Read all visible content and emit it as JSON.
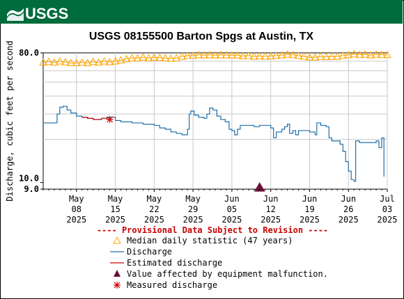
{
  "header": {
    "agency_logo_text": "USGS",
    "brand_color": "#006b3c"
  },
  "title": "USGS 08155500 Barton Spgs at Austin, TX",
  "colors": {
    "median": "#ffa500",
    "discharge": "#1f6fa8",
    "estimated": "#cc0000",
    "measured": "#cc0000",
    "malfunction": "#6b0f3a",
    "provisional": "#cc0000",
    "grid": "#c8c8c8"
  },
  "chart_data": {
    "type": "line",
    "title": "USGS 08155500 Barton Spgs at Austin, TX",
    "ylabel": "Discharge, cubic feet per second",
    "y_scale": "log",
    "ylim": [
      9.0,
      80.0
    ],
    "y_ticks": [
      {
        "value": 80,
        "label": "80.0"
      },
      {
        "value": 10,
        "label": "10.0"
      },
      {
        "value": 9,
        "label": "9.0"
      }
    ],
    "x_range": [
      "2025-05-02",
      "2025-07-03"
    ],
    "x_ticks": [
      {
        "date": "2025-05-08",
        "line1": "May",
        "line2": "08",
        "line3": "2025"
      },
      {
        "date": "2025-05-15",
        "line1": "May",
        "line2": "15",
        "line3": "2025"
      },
      {
        "date": "2025-05-22",
        "line1": "May",
        "line2": "22",
        "line3": "2025"
      },
      {
        "date": "2025-05-29",
        "line1": "May",
        "line2": "29",
        "line3": "2025"
      },
      {
        "date": "2025-06-05",
        "line1": "Jun",
        "line2": "05",
        "line3": "2025"
      },
      {
        "date": "2025-06-12",
        "line1": "Jun",
        "line2": "12",
        "line3": "2025"
      },
      {
        "date": "2025-06-19",
        "line1": "Jun",
        "line2": "19",
        "line3": "2025"
      },
      {
        "date": "2025-06-26",
        "line1": "Jun",
        "line2": "26",
        "line3": "2025"
      },
      {
        "date": "2025-07-03",
        "line1": "Jul",
        "line2": "03",
        "line3": "2025"
      }
    ],
    "grid": true,
    "series": [
      {
        "name": "Median daily statistic (47 years)",
        "marker": "triangle-open",
        "points": [
          [
            "2025-05-02",
            68.5
          ],
          [
            "2025-05-03",
            69.5
          ],
          [
            "2025-05-04",
            68.5
          ],
          [
            "2025-05-05",
            70.0
          ],
          [
            "2025-05-06",
            69.0
          ],
          [
            "2025-05-07",
            68.0
          ],
          [
            "2025-05-08",
            68.0
          ],
          [
            "2025-05-09",
            68.5
          ],
          [
            "2025-05-10",
            68.0
          ],
          [
            "2025-05-11",
            69.5
          ],
          [
            "2025-05-12",
            68.5
          ],
          [
            "2025-05-13",
            70.0
          ],
          [
            "2025-05-14",
            69.0
          ],
          [
            "2025-05-15",
            70.0
          ],
          [
            "2025-05-16",
            71.0
          ],
          [
            "2025-05-17",
            72.5
          ],
          [
            "2025-05-18",
            73.5
          ],
          [
            "2025-05-19",
            73.5
          ],
          [
            "2025-05-20",
            74.5
          ],
          [
            "2025-05-21",
            73.5
          ],
          [
            "2025-05-22",
            74.5
          ],
          [
            "2025-05-23",
            74.0
          ],
          [
            "2025-05-24",
            73.5
          ],
          [
            "2025-05-25",
            73.0
          ],
          [
            "2025-05-26",
            73.5
          ],
          [
            "2025-05-27",
            75.5
          ],
          [
            "2025-05-28",
            76.5
          ],
          [
            "2025-05-29",
            76.5
          ],
          [
            "2025-05-30",
            77.5
          ],
          [
            "2025-05-31",
            77.0
          ],
          [
            "2025-06-01",
            77.5
          ],
          [
            "2025-06-02",
            77.0
          ],
          [
            "2025-06-03",
            77.5
          ],
          [
            "2025-06-04",
            77.0
          ],
          [
            "2025-06-05",
            77.0
          ],
          [
            "2025-06-06",
            77.0
          ],
          [
            "2025-06-07",
            76.0
          ],
          [
            "2025-06-08",
            76.5
          ],
          [
            "2025-06-09",
            75.5
          ],
          [
            "2025-06-10",
            76.0
          ],
          [
            "2025-06-11",
            75.5
          ],
          [
            "2025-06-12",
            76.0
          ],
          [
            "2025-06-13",
            76.5
          ],
          [
            "2025-06-14",
            77.0
          ],
          [
            "2025-06-15",
            78.0
          ],
          [
            "2025-06-16",
            77.5
          ],
          [
            "2025-06-17",
            76.5
          ],
          [
            "2025-06-18",
            75.5
          ],
          [
            "2025-06-19",
            74.5
          ],
          [
            "2025-06-20",
            74.5
          ],
          [
            "2025-06-21",
            75.5
          ],
          [
            "2025-06-22",
            75.0
          ],
          [
            "2025-06-23",
            75.5
          ],
          [
            "2025-06-24",
            75.5
          ],
          [
            "2025-06-25",
            76.5
          ],
          [
            "2025-06-26",
            77.5
          ],
          [
            "2025-06-27",
            78.5
          ],
          [
            "2025-06-28",
            77.5
          ],
          [
            "2025-06-29",
            78.0
          ],
          [
            "2025-06-30",
            77.0
          ],
          [
            "2025-07-01",
            78.0
          ],
          [
            "2025-07-02",
            77.5
          ],
          [
            "2025-07-03",
            77.5
          ]
        ]
      },
      {
        "name": "Discharge",
        "points": [
          [
            "2025-05-02",
            26.0
          ],
          [
            "2025-05-04",
            26.0
          ],
          [
            "2025-05-04.5",
            30.0
          ],
          [
            "2025-05-05",
            33.5
          ],
          [
            "2025-05-05.6",
            34.0
          ],
          [
            "2025-05-06.3",
            32.0
          ],
          [
            "2025-05-07",
            30.5
          ],
          [
            "2025-05-08",
            29.0
          ],
          [
            "2025-05-09",
            28.5
          ],
          [
            "2025-05-10",
            28.0
          ],
          [
            "2025-05-11",
            27.5
          ],
          [
            "2025-05-12.5",
            28.0
          ],
          [
            "2025-05-13.5",
            28.5
          ],
          [
            "2025-05-15",
            27.0
          ],
          [
            "2025-05-16",
            26.5
          ],
          [
            "2025-05-17",
            26.5
          ],
          [
            "2025-05-18",
            26.0
          ],
          [
            "2025-05-19",
            26.0
          ],
          [
            "2025-05-20",
            25.5
          ],
          [
            "2025-05-21",
            25.5
          ],
          [
            "2025-05-22",
            25.0
          ],
          [
            "2025-05-23",
            24.0
          ],
          [
            "2025-05-24",
            23.5
          ],
          [
            "2025-05-25",
            22.5
          ],
          [
            "2025-05-26",
            22.0
          ],
          [
            "2025-05-27",
            21.5
          ],
          [
            "2025-05-28",
            23.5
          ],
          [
            "2025-05-28.3",
            30.0
          ],
          [
            "2025-05-28.6",
            31.5
          ],
          [
            "2025-05-29.2",
            29.5
          ],
          [
            "2025-05-30",
            28.5
          ],
          [
            "2025-05-31",
            28.0
          ],
          [
            "2025-05-31.5",
            30.0
          ],
          [
            "2025-06-01",
            33.0
          ],
          [
            "2025-06-01.6",
            32.0
          ],
          [
            "2025-06-02.3",
            29.0
          ],
          [
            "2025-06-03",
            27.5
          ],
          [
            "2025-06-03.8",
            26.5
          ],
          [
            "2025-06-04.5",
            23.5
          ],
          [
            "2025-06-05",
            23.0
          ],
          [
            "2025-06-05.5",
            21.5
          ],
          [
            "2025-06-06",
            23.5
          ],
          [
            "2025-06-06.5",
            25.0
          ],
          [
            "2025-06-08",
            25.0
          ],
          [
            "2025-06-09",
            24.5
          ],
          [
            "2025-06-10",
            25.0
          ],
          [
            "2025-06-11",
            25.0
          ],
          [
            "2025-06-12",
            24.0
          ],
          [
            "2025-06-12.5",
            20.5
          ],
          [
            "2025-06-13",
            22.5
          ],
          [
            "2025-06-14",
            23.5
          ],
          [
            "2025-06-14.5",
            24.5
          ],
          [
            "2025-06-15",
            25.5
          ],
          [
            "2025-06-15.4",
            22.0
          ],
          [
            "2025-06-16",
            23.0
          ],
          [
            "2025-06-16.5",
            21.5
          ],
          [
            "2025-06-17",
            23.0
          ],
          [
            "2025-06-18",
            23.0
          ],
          [
            "2025-06-19",
            22.5
          ],
          [
            "2025-06-20",
            21.5
          ],
          [
            "2025-06-20.3",
            26.0
          ],
          [
            "2025-06-21",
            25.0
          ],
          [
            "2025-06-22",
            24.5
          ],
          [
            "2025-06-22.5",
            20.5
          ],
          [
            "2025-06-23",
            19.5
          ],
          [
            "2025-06-24",
            19.5
          ],
          [
            "2025-06-24.5",
            18.5
          ],
          [
            "2025-06-25",
            16.5
          ],
          [
            "2025-06-25.5",
            14.0
          ],
          [
            "2025-06-26",
            12.0
          ],
          [
            "2025-06-26.5",
            10.5
          ],
          [
            "2025-06-27",
            10.2
          ],
          [
            "2025-06-27.3",
            19.5
          ],
          [
            "2025-06-28",
            19.0
          ],
          [
            "2025-06-29",
            19.0
          ],
          [
            "2025-06-30",
            19.0
          ],
          [
            "2025-07-01",
            19.5
          ],
          [
            "2025-07-01.5",
            17.5
          ],
          [
            "2025-07-02",
            20.5
          ],
          [
            "2025-07-02.4",
            11.0
          ]
        ]
      },
      {
        "name": "Estimated discharge",
        "points": [
          [
            "2025-05-09",
            28.5
          ],
          [
            "2025-05-10",
            28.0
          ],
          [
            "2025-05-11",
            27.5
          ],
          [
            "2025-05-12.5",
            28.0
          ],
          [
            "2025-05-13.5",
            28.5
          ]
        ]
      },
      {
        "name": "Value affected by equipment malfunction.",
        "marker": "triangle-filled",
        "points": [
          [
            "2025-06-10",
            9.0
          ]
        ]
      },
      {
        "name": "Measured discharge",
        "marker": "asterisk",
        "points": [
          [
            "2025-05-14",
            27.5
          ]
        ]
      }
    ],
    "legend": {
      "placement": "bottom",
      "provisional_note": "---- Provisional Data Subject to Revision ----",
      "entries": [
        {
          "label": "Median daily statistic (47 years)",
          "symbol": "triangle-open"
        },
        {
          "label": "Discharge",
          "symbol": "line-blue"
        },
        {
          "label": "Estimated discharge",
          "symbol": "line-red"
        },
        {
          "label": "Value affected by equipment malfunction.",
          "symbol": "triangle-filled"
        },
        {
          "label": "Measured discharge",
          "symbol": "asterisk"
        }
      ]
    }
  }
}
